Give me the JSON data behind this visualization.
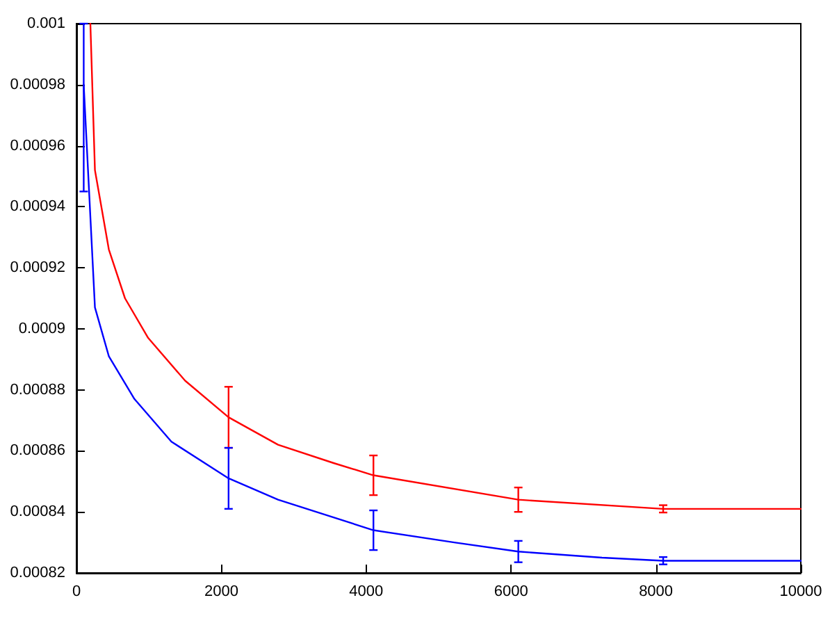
{
  "chart_data": {
    "type": "line",
    "xlim": [
      0,
      10000
    ],
    "xticks": [
      0,
      2000,
      4000,
      6000,
      8000,
      10000
    ],
    "ylim": [
      0.00082,
      0.001
    ],
    "yticks": [
      0.00082,
      0.00084,
      0.00086,
      0.00088,
      0.0009,
      0.00092,
      0.00094,
      0.00096,
      0.00098,
      0.001
    ],
    "grid": false,
    "marker": "none",
    "line_style": "solid",
    "series": [
      {
        "color": "#ff0000",
        "x": [
          192,
          255,
          447,
          670,
          990,
          1500,
          2100,
          2783,
          3551,
          4100,
          6100,
          8100,
          10000
        ],
        "values": [
          0.001,
          0.000952,
          0.000926,
          0.00091,
          0.000897,
          0.000883,
          0.000871,
          0.000862,
          0.000856,
          0.000852,
          0.000844,
          0.000841,
          0.000841
        ],
        "errors": [
          null,
          null,
          null,
          null,
          null,
          null,
          1e-05,
          null,
          null,
          6.5e-06,
          4e-06,
          1.2e-06,
          null
        ]
      },
      {
        "color": "#0000ff",
        "x": [
          100,
          255,
          447,
          800,
          1311,
          2100,
          2783,
          4100,
          5215,
          6100,
          7255,
          8100,
          10000
        ],
        "values": [
          0.00098,
          0.000907,
          0.000891,
          0.000877,
          0.000863,
          0.000851,
          0.000844,
          0.000834,
          0.00083,
          0.000827,
          0.000825,
          0.000824,
          0.000824
        ],
        "errors": [
          [
            0.000945,
            0.001
          ],
          null,
          null,
          null,
          null,
          1e-05,
          null,
          6.5e-06,
          null,
          3.5e-06,
          null,
          1.2e-06,
          null
        ]
      }
    ]
  }
}
